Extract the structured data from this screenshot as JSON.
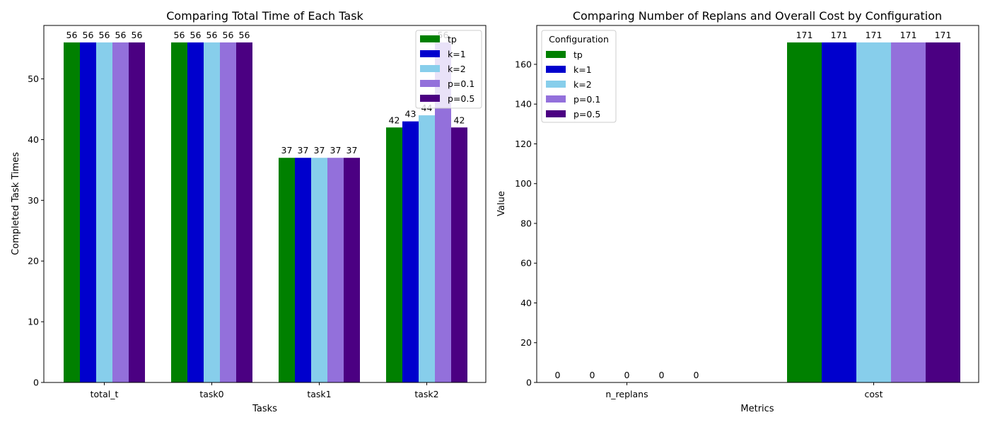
{
  "chart_data": [
    {
      "type": "bar",
      "title": "Comparing Total Time of Each Task",
      "xlabel": "Tasks",
      "ylabel": "Completed Task Times",
      "ylim": [
        0,
        58.8
      ],
      "yticks": [
        0,
        10,
        20,
        30,
        40,
        50
      ],
      "categories": [
        "total_t",
        "task0",
        "task1",
        "task2"
      ],
      "legend_title": "",
      "legend_position": "top-right",
      "series": [
        {
          "name": "tp",
          "color": "#008000",
          "values": [
            56,
            56,
            37,
            42
          ]
        },
        {
          "name": "k=1",
          "color": "#0000cd",
          "values": [
            56,
            56,
            37,
            43
          ]
        },
        {
          "name": "k=2",
          "color": "#87ceeb",
          "values": [
            56,
            56,
            37,
            44
          ]
        },
        {
          "name": "p=0.1",
          "color": "#9370db",
          "values": [
            56,
            56,
            37,
            56
          ]
        },
        {
          "name": "p=0.5",
          "color": "#4b0082",
          "values": [
            56,
            56,
            37,
            42
          ]
        }
      ]
    },
    {
      "type": "bar",
      "title": "Comparing Number of Replans and Overall Cost by Configuration",
      "xlabel": "Metrics",
      "ylabel": "Value",
      "ylim": [
        0,
        179.55
      ],
      "yticks": [
        0,
        20,
        40,
        60,
        80,
        100,
        120,
        140,
        160
      ],
      "categories": [
        "n_replans",
        "cost"
      ],
      "legend_title": "Configuration",
      "legend_position": "top-left",
      "series": [
        {
          "name": "tp",
          "color": "#008000",
          "values": [
            0,
            171
          ]
        },
        {
          "name": "k=1",
          "color": "#0000cd",
          "values": [
            0,
            171
          ]
        },
        {
          "name": "k=2",
          "color": "#87ceeb",
          "values": [
            0,
            171
          ]
        },
        {
          "name": "p=0.1",
          "color": "#9370db",
          "values": [
            0,
            171
          ]
        },
        {
          "name": "p=0.5",
          "color": "#4b0082",
          "values": [
            0,
            171
          ]
        }
      ]
    }
  ]
}
